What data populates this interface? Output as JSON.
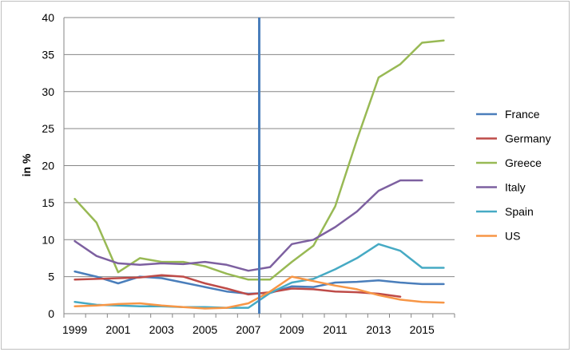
{
  "chart_data": {
    "type": "line",
    "title": "",
    "xlabel": "",
    "ylabel": "in %",
    "xlim": [
      1999,
      2016
    ],
    "ylim": [
      0,
      40
    ],
    "x_ticks": [
      1999,
      2001,
      2003,
      2005,
      2007,
      2009,
      2011,
      2013,
      2015
    ],
    "y_ticks": [
      0,
      5,
      10,
      15,
      20,
      25,
      30,
      35,
      40
    ],
    "grid": "horizontal",
    "legend_position": "right",
    "x": [
      1999,
      2000,
      2001,
      2002,
      2003,
      2004,
      2005,
      2006,
      2007,
      2008,
      2009,
      2010,
      2011,
      2012,
      2013,
      2014,
      2015,
      2016
    ],
    "series": [
      {
        "name": "France",
        "color": "#4a7ebb",
        "values": [
          5.7,
          5.0,
          4.1,
          5.0,
          4.8,
          4.2,
          3.6,
          3.0,
          2.7,
          2.8,
          3.7,
          3.6,
          4.2,
          4.3,
          4.5,
          4.2,
          4.0,
          4.0
        ]
      },
      {
        "name": "Germany",
        "color": "#be4b48",
        "values": [
          4.6,
          4.7,
          4.8,
          4.9,
          5.2,
          5.0,
          4.1,
          3.4,
          2.6,
          2.9,
          3.4,
          3.3,
          3.0,
          2.9,
          2.7,
          2.3,
          null,
          null
        ]
      },
      {
        "name": "Greece",
        "color": "#98b954",
        "values": [
          15.5,
          12.3,
          5.6,
          7.5,
          7.0,
          7.0,
          6.4,
          5.4,
          4.6,
          4.6,
          7.0,
          9.2,
          14.5,
          23.5,
          31.9,
          33.7,
          36.6,
          36.9
        ]
      },
      {
        "name": "Italy",
        "color": "#7d60a0",
        "values": [
          9.8,
          7.8,
          6.8,
          6.6,
          6.8,
          6.7,
          7.0,
          6.6,
          5.8,
          6.3,
          9.4,
          10.0,
          11.7,
          13.8,
          16.6,
          18.0,
          18.0,
          null
        ]
      },
      {
        "name": "Spain",
        "color": "#46aac4",
        "values": [
          1.6,
          1.2,
          1.1,
          1.0,
          1.0,
          0.9,
          0.9,
          0.8,
          0.8,
          2.8,
          4.2,
          4.7,
          6.0,
          7.5,
          9.4,
          8.5,
          6.2,
          6.2
        ]
      },
      {
        "name": "US",
        "color": "#f79646",
        "values": [
          1.0,
          1.1,
          1.3,
          1.4,
          1.1,
          0.9,
          0.7,
          0.8,
          1.4,
          3.0,
          5.0,
          4.4,
          3.8,
          3.3,
          2.5,
          1.9,
          1.6,
          1.5
        ]
      }
    ],
    "annotations": [
      {
        "type": "vertical-line",
        "x": 2007.5,
        "color": "#4a7ebb"
      }
    ]
  }
}
